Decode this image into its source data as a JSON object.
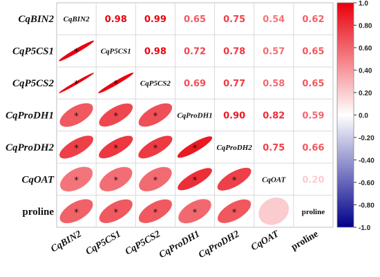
{
  "chart_data": {
    "type": "heatmap",
    "subtype": "correlation-matrix-mixed",
    "title": "",
    "variables": [
      "CqBIN2",
      "CqP5CS1",
      "CqP5CS2",
      "CqProDH1",
      "CqProDH2",
      "CqOAT",
      "proline"
    ],
    "italic_labels": [
      true,
      true,
      true,
      true,
      true,
      true,
      false
    ],
    "correlations": [
      [
        1.0,
        0.98,
        0.99,
        0.65,
        0.75,
        0.54,
        0.62
      ],
      [
        0.98,
        1.0,
        0.98,
        0.72,
        0.78,
        0.57,
        0.65
      ],
      [
        0.99,
        0.98,
        1.0,
        0.69,
        0.77,
        0.58,
        0.65
      ],
      [
        0.65,
        0.72,
        0.69,
        1.0,
        0.9,
        0.82,
        0.59
      ],
      [
        0.75,
        0.78,
        0.77,
        0.9,
        1.0,
        0.75,
        0.66
      ],
      [
        0.54,
        0.57,
        0.58,
        0.82,
        0.75,
        1.0,
        0.2
      ],
      [
        0.62,
        0.65,
        0.65,
        0.59,
        0.66,
        0.2,
        1.0
      ]
    ],
    "upper_labels": [
      [
        "",
        "0.98",
        "0.99",
        "0.65",
        "0.75",
        "0.54",
        "0.62"
      ],
      [
        "",
        "",
        "0.98",
        "0.72",
        "0.78",
        "0.57",
        "0.65"
      ],
      [
        "",
        "",
        "",
        "0.69",
        "0.77",
        "0.58",
        "0.65"
      ],
      [
        "",
        "",
        "",
        "",
        "0.90",
        "0.82",
        "0.59"
      ],
      [
        "",
        "",
        "",
        "",
        "",
        "0.75",
        "0.66"
      ],
      [
        "",
        "",
        "",
        "",
        "",
        "",
        "0.20"
      ],
      [
        "",
        "",
        "",
        "",
        "",
        "",
        ""
      ]
    ],
    "significance_marker": "*",
    "significant_lower": [
      [
        false,
        false,
        false,
        false,
        false,
        false,
        false
      ],
      [
        true,
        false,
        false,
        false,
        false,
        false,
        false
      ],
      [
        true,
        true,
        false,
        false,
        false,
        false,
        false
      ],
      [
        true,
        true,
        true,
        false,
        false,
        false,
        false
      ],
      [
        true,
        true,
        true,
        true,
        false,
        false,
        false
      ],
      [
        true,
        true,
        true,
        true,
        true,
        false,
        false
      ],
      [
        true,
        true,
        true,
        true,
        true,
        false,
        false
      ]
    ],
    "upper_display": "numbers",
    "lower_display": "ellipses",
    "colorbar": {
      "range": [
        -1.0,
        1.0
      ],
      "ticks": [
        "1.0",
        "0.80",
        "0.60",
        "0.40",
        "0.20",
        "0.0",
        "-0.20",
        "-0.40",
        "-0.60",
        "-0.80",
        "-1.0"
      ],
      "low_color": "#00008B",
      "mid_color": "#FFFFFF",
      "high_color": "#E8000B"
    },
    "grid": true,
    "legend_placement": "right"
  }
}
